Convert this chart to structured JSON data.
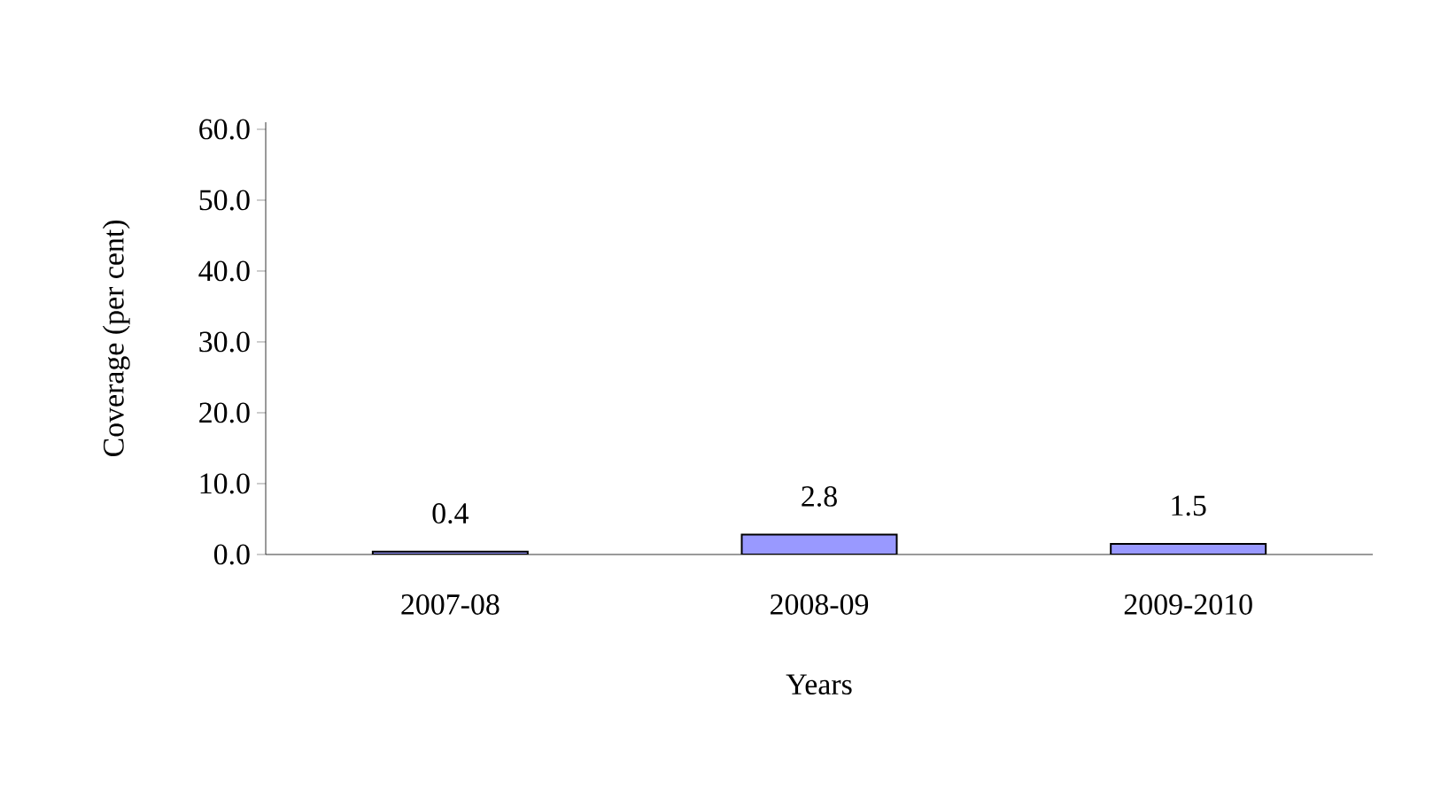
{
  "chart_data": {
    "type": "bar",
    "xlabel": "Years",
    "ylabel": "Coverage (per cent)",
    "categories": [
      "2007-08",
      "2008-09",
      "2009-2010"
    ],
    "values": [
      0.4,
      2.8,
      1.5
    ],
    "color": "#9999ff",
    "data_labels": true,
    "ylim": [
      0,
      61
    ],
    "yticks": [
      {
        "value": 0,
        "label": "0.0"
      },
      {
        "value": 10,
        "label": "10.0"
      },
      {
        "value": 20,
        "label": "20.0"
      },
      {
        "value": 30,
        "label": "30.0"
      },
      {
        "value": 40,
        "label": "40.0"
      },
      {
        "value": 50,
        "label": "50.0"
      },
      {
        "value": 60,
        "label": "60.0"
      }
    ],
    "grid": false
  }
}
